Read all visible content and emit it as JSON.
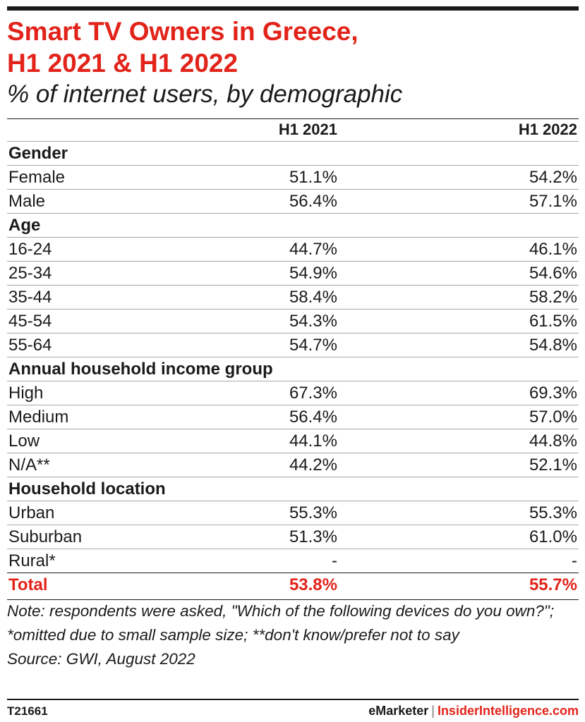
{
  "chart_data": {
    "type": "table",
    "title": "Smart TV Owners in Greece, H1 2021 & H1 2022",
    "subtitle": "% of internet users, by demographic",
    "columns": [
      "H1 2021",
      "H1 2022"
    ],
    "groups": [
      {
        "name": "Gender",
        "rows": [
          {
            "label": "Female",
            "values": [
              "51.1%",
              "54.2%"
            ]
          },
          {
            "label": "Male",
            "values": [
              "56.4%",
              "57.1%"
            ]
          }
        ]
      },
      {
        "name": "Age",
        "rows": [
          {
            "label": "16-24",
            "values": [
              "44.7%",
              "46.1%"
            ]
          },
          {
            "label": "25-34",
            "values": [
              "54.9%",
              "54.6%"
            ]
          },
          {
            "label": "35-44",
            "values": [
              "58.4%",
              "58.2%"
            ]
          },
          {
            "label": "45-54",
            "values": [
              "54.3%",
              "61.5%"
            ]
          },
          {
            "label": "55-64",
            "values": [
              "54.7%",
              "54.8%"
            ]
          }
        ]
      },
      {
        "name": "Annual household income group",
        "rows": [
          {
            "label": "High",
            "values": [
              "67.3%",
              "69.3%"
            ]
          },
          {
            "label": "Medium",
            "values": [
              "56.4%",
              "57.0%"
            ]
          },
          {
            "label": "Low",
            "values": [
              "44.1%",
              "44.8%"
            ]
          },
          {
            "label": "N/A**",
            "values": [
              "44.2%",
              "52.1%"
            ]
          }
        ]
      },
      {
        "name": "Household location",
        "rows": [
          {
            "label": "Urban",
            "values": [
              "55.3%",
              "55.3%"
            ]
          },
          {
            "label": "Suburban",
            "values": [
              "51.3%",
              "61.0%"
            ]
          },
          {
            "label": "Rural*",
            "values": [
              "-",
              "-"
            ]
          }
        ]
      }
    ],
    "total": {
      "label": "Total",
      "values": [
        "53.8%",
        "55.7%"
      ]
    }
  },
  "title_line1": "Smart TV Owners in Greece,",
  "title_line2": "H1 2021 & H1 2022",
  "note": "Note: respondents were asked, \"Which of the following devices do you own?\"; *omitted due to small sample size; **don't know/prefer not to say",
  "source": "Source: GWI, August 2022",
  "footer": {
    "id": "T21661",
    "brand": "eMarketer",
    "separator": "|",
    "partner": "InsiderIntelligence.com"
  },
  "colors": {
    "accent": "#e2231a",
    "text": "#1a1a1a"
  }
}
